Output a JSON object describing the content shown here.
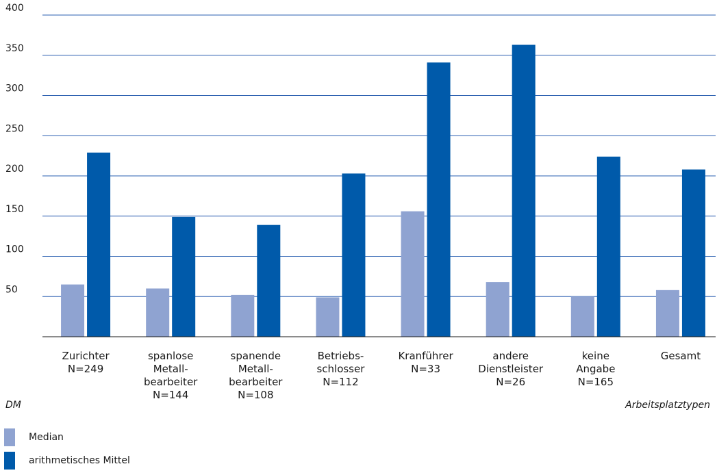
{
  "chart_data": {
    "type": "bar",
    "ylabel": "DM",
    "xlabel": "Arbeitsplatztypen",
    "ylim": [
      0,
      400
    ],
    "yticks": [
      50,
      100,
      150,
      200,
      250,
      300,
      350,
      400
    ],
    "grid": true,
    "categories": [
      "Zurichter\nN=249",
      "spanlose\nMetall-\nbearbeiter\nN=144",
      "spanende\nMetall-\nbearbeiter\nN=108",
      "Betriebs-\nschlosser\nN=112",
      "Kranführer\nN=33",
      "andere\nDienstleister\nN=26",
      "keine\nAngabe\nN=165",
      "Gesamt"
    ],
    "series": [
      {
        "name": "Median",
        "color": "#8fa3d1",
        "values": [
          65,
          60,
          52,
          49,
          156,
          68,
          50,
          58
        ]
      },
      {
        "name": "arithmetisches Mittel",
        "color": "#005aaa",
        "values": [
          229,
          149,
          139,
          203,
          341,
          363,
          224,
          208
        ]
      }
    ],
    "legend_position": "bottom-left"
  }
}
